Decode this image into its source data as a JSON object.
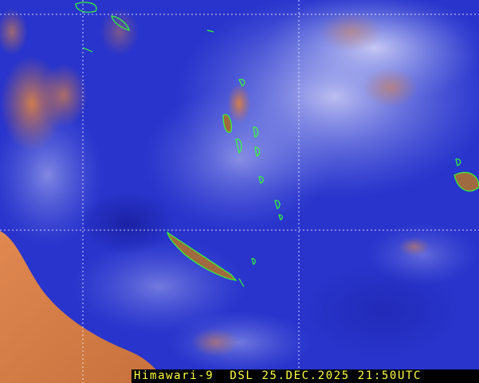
{
  "image": {
    "kind": "satellite-imagery",
    "caption": "Himawari-9  DSL 25.DEC.2025 21:50UTC",
    "colors": {
      "ocean": "#2430c8",
      "cloud": "#c8c8f0",
      "land_desert": "#d07a40",
      "coastline": "#30ff30",
      "grid": "#ffffff",
      "caption_text": "#ffff40",
      "caption_bg": "#000000"
    },
    "grid": "dashed lat/lon lines",
    "features": [
      "coastlines",
      "islands",
      "cloud cover"
    ]
  }
}
